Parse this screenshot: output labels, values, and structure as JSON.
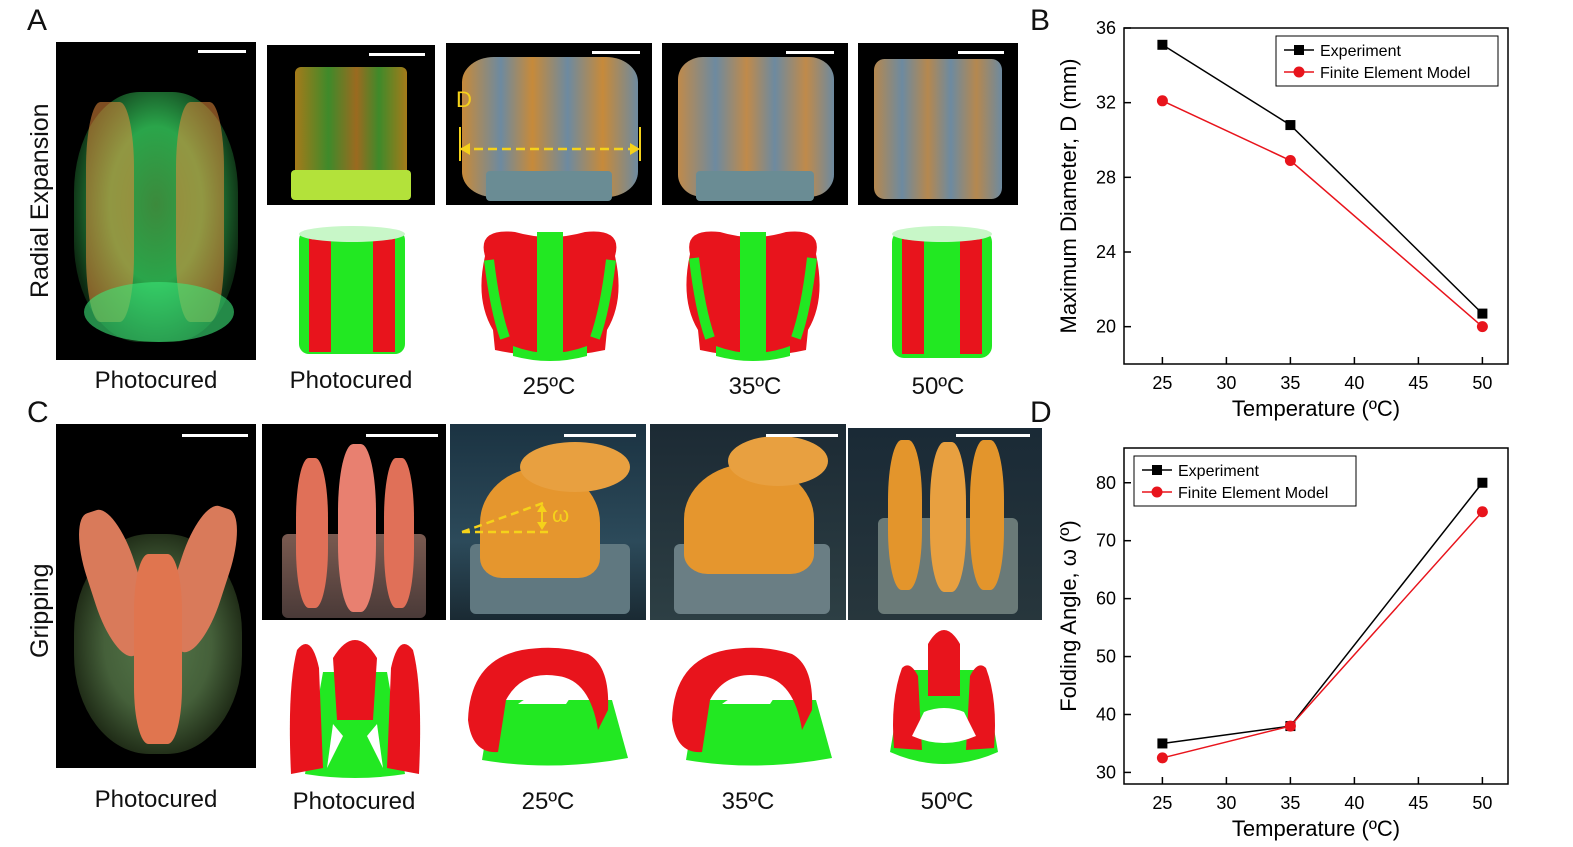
{
  "panels": {
    "a": "A",
    "b": "B",
    "c": "C",
    "d": "D"
  },
  "rows": {
    "top_title": "Radial Expansion",
    "bottom_title": "Gripping"
  },
  "top_captions": [
    "Photocured",
    "Photocured",
    "25ºC",
    "35ºC",
    "50ºC"
  ],
  "bottom_captions": [
    "Photocured",
    "Photocured",
    "25ºC",
    "35ºC",
    "50ºC"
  ],
  "annotations": {
    "diameter_label": "D",
    "angle_label": "ω"
  },
  "colors": {
    "experiment": "#000000",
    "fem": "#e8141c",
    "model_red": "#e8141c",
    "model_green": "#22e822",
    "annotation_yellow": "#f5d21a"
  },
  "chart_data": [
    {
      "type": "line",
      "xlabel": "Temperature (ºC)",
      "ylabel": "Maximum Diameter, D (mm)",
      "xlim": [
        22,
        52
      ],
      "ylim": [
        18,
        36
      ],
      "xticks": [
        25,
        30,
        35,
        40,
        45,
        50
      ],
      "yticks": [
        20,
        24,
        28,
        32,
        36
      ],
      "legend_position": "top-right",
      "series": [
        {
          "name": "Experiment",
          "x": [
            25,
            35,
            50
          ],
          "y": [
            35.1,
            30.8,
            20.7
          ],
          "marker": "square"
        },
        {
          "name": "Finite Element Model",
          "x": [
            25,
            35,
            50
          ],
          "y": [
            32.1,
            28.9,
            20.0
          ],
          "marker": "circle"
        }
      ]
    },
    {
      "type": "line",
      "xlabel": "Temperature (ºC)",
      "ylabel": "Folding Angle, ω (º)",
      "xlim": [
        22,
        52
      ],
      "ylim": [
        28,
        86
      ],
      "xticks": [
        25,
        30,
        35,
        40,
        45,
        50
      ],
      "yticks": [
        30,
        40,
        50,
        60,
        70,
        80
      ],
      "legend_position": "top-left",
      "series": [
        {
          "name": "Experiment",
          "x": [
            25,
            35,
            50
          ],
          "y": [
            35,
            38,
            80
          ],
          "marker": "square"
        },
        {
          "name": "Finite Element Model",
          "x": [
            25,
            35,
            50
          ],
          "y": [
            32.5,
            38,
            75
          ],
          "marker": "circle"
        }
      ]
    }
  ]
}
